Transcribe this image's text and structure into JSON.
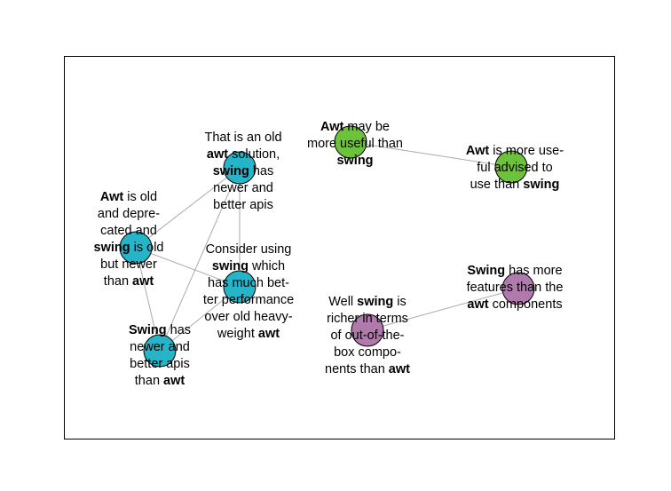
{
  "colors": {
    "blue": "#26b5c8",
    "green": "#6dc23b",
    "purple": "#b07aad",
    "edge": "#aaaaaa"
  },
  "nodes": [
    {
      "id": "n1",
      "color": "blue",
      "lines": [
        [
          {
            "t": "That is an old"
          }
        ],
        [
          {
            "t": "awt",
            "b": true
          },
          {
            "t": " solution,"
          }
        ],
        [
          {
            "t": "swing",
            "b": true
          },
          {
            "t": " has"
          }
        ],
        [
          {
            "t": "newer and"
          }
        ],
        [
          {
            "t": "better apis"
          }
        ]
      ]
    },
    {
      "id": "n2",
      "color": "blue",
      "lines": [
        [
          {
            "t": "Awt",
            "b": true
          },
          {
            "t": " is old"
          }
        ],
        [
          {
            "t": "and depre-"
          }
        ],
        [
          {
            "t": "cated and"
          }
        ],
        [
          {
            "t": "swing",
            "b": true
          },
          {
            "t": " is old"
          }
        ],
        [
          {
            "t": "but newer"
          }
        ],
        [
          {
            "t": "than "
          },
          {
            "t": "awt",
            "b": true
          }
        ]
      ]
    },
    {
      "id": "n3",
      "color": "blue",
      "lines": [
        [
          {
            "t": "Consider using"
          }
        ],
        [
          {
            "t": "swing",
            "b": true
          },
          {
            "t": " which"
          }
        ],
        [
          {
            "t": "has much bet-"
          }
        ],
        [
          {
            "t": "ter performance"
          }
        ],
        [
          {
            "t": "over old heavy-"
          }
        ],
        [
          {
            "t": "weight "
          },
          {
            "t": "awt",
            "b": true
          }
        ]
      ]
    },
    {
      "id": "n4",
      "color": "blue",
      "lines": [
        [
          {
            "t": "Swing",
            "b": true
          },
          {
            "t": " has"
          }
        ],
        [
          {
            "t": "newer and"
          }
        ],
        [
          {
            "t": "better apis"
          }
        ],
        [
          {
            "t": "than "
          },
          {
            "t": "awt",
            "b": true
          }
        ]
      ]
    },
    {
      "id": "n5",
      "color": "green",
      "lines": [
        [
          {
            "t": "Awt",
            "b": true
          },
          {
            "t": " may be"
          }
        ],
        [
          {
            "t": "more useful than"
          }
        ],
        [
          {
            "t": "swing",
            "b": true
          }
        ]
      ]
    },
    {
      "id": "n6",
      "color": "green",
      "lines": [
        [
          {
            "t": "Awt",
            "b": true
          },
          {
            "t": " is more use-"
          }
        ],
        [
          {
            "t": "ful advised to"
          }
        ],
        [
          {
            "t": "use than "
          },
          {
            "t": "swing",
            "b": true
          }
        ]
      ]
    },
    {
      "id": "n7",
      "color": "purple",
      "lines": [
        [
          {
            "t": "Swing",
            "b": true
          },
          {
            "t": " has more"
          }
        ],
        [
          {
            "t": "features than the"
          }
        ],
        [
          {
            "t": "awt",
            "b": true
          },
          {
            "t": " components"
          }
        ]
      ]
    },
    {
      "id": "n8",
      "color": "purple",
      "lines": [
        [
          {
            "t": "Well "
          },
          {
            "t": "swing",
            "b": true
          },
          {
            "t": " is"
          }
        ],
        [
          {
            "t": "richer in terms"
          }
        ],
        [
          {
            "t": "of out-of-the-"
          }
        ],
        [
          {
            "t": "box compo-"
          }
        ],
        [
          {
            "t": "nents than "
          },
          {
            "t": "awt",
            "b": true
          }
        ]
      ]
    }
  ],
  "edges": [
    [
      "n1",
      "n2"
    ],
    [
      "n1",
      "n3"
    ],
    [
      "n1",
      "n4"
    ],
    [
      "n2",
      "n3"
    ],
    [
      "n2",
      "n4"
    ],
    [
      "n3",
      "n4"
    ],
    [
      "n5",
      "n6"
    ],
    [
      "n7",
      "n8"
    ]
  ]
}
